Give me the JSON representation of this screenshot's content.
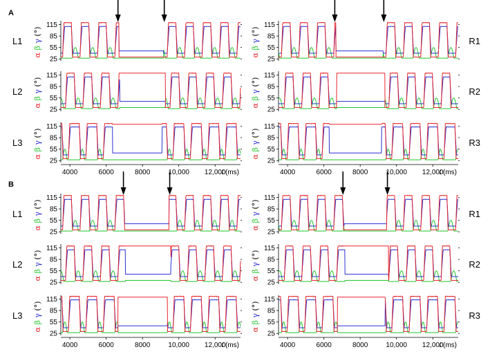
{
  "colors": {
    "alpha": "#e8242b",
    "beta": "#22c32b",
    "gamma": "#2a2fd0",
    "axis": "#000000"
  },
  "ylabel": {
    "alpha": "α",
    "beta": "β",
    "gamma": "γ",
    "unit": "(°)"
  },
  "yticks": [
    25,
    55,
    85,
    115
  ],
  "xticks": [
    4000,
    6000,
    8000,
    10000,
    12000
  ],
  "xtick_labels": [
    "4000",
    "6000",
    "8000",
    "10,000",
    "12,000"
  ],
  "x_axis_label": "t",
  "x_axis_unit": "(ms)",
  "chart_data": [
    {
      "type": "line",
      "panel": "A",
      "xlim": [
        3500,
        13400
      ],
      "ylim": [
        20,
        125
      ],
      "arrows_x": {
        "left": [
          6650,
          9200
        ],
        "right": [
          6600,
          9300
        ]
      },
      "rows": [
        {
          "label_left": "L1",
          "label_right": "R1"
        },
        {
          "label_left": "L2",
          "label_right": "R2"
        },
        {
          "label_left": "L3",
          "label_right": "R3"
        }
      ]
    },
    {
      "type": "line",
      "panel": "B",
      "xlim": [
        3500,
        13400
      ],
      "ylim": [
        20,
        125
      ],
      "arrows_x": {
        "left": [
          6950,
          9500
        ],
        "right": [
          7050,
          9500
        ]
      },
      "rows": [
        {
          "label_left": "L1",
          "label_right": "R1"
        },
        {
          "label_left": "L2",
          "label_right": "R2"
        },
        {
          "label_left": "L3",
          "label_right": "R3"
        }
      ]
    }
  ]
}
